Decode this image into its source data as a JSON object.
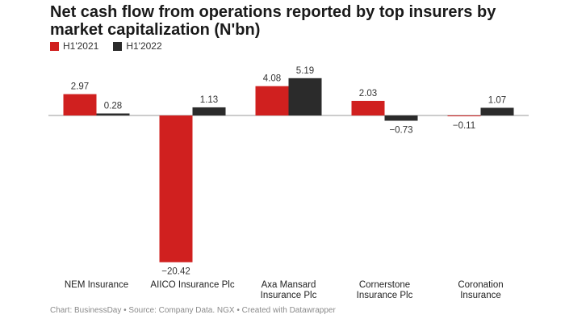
{
  "chart_data": {
    "type": "bar",
    "title": "Net cash flow from operations reported by top insurers by market capitalization (N'bn)",
    "categories": [
      [
        "NEM Insurance"
      ],
      [
        "AIICO Insurance Plc"
      ],
      [
        "Axa Mansard",
        "Insurance Plc"
      ],
      [
        "Cornerstone",
        "Insurance Plc"
      ],
      [
        "Coronation",
        "Insurance"
      ]
    ],
    "series": [
      {
        "name": "H1'2021",
        "color": "#d0201f",
        "values": [
          2.97,
          -20.42,
          4.08,
          2.03,
          -0.11
        ],
        "labels": [
          "2.97",
          "−20.42",
          "4.08",
          "2.03",
          "−0.11"
        ]
      },
      {
        "name": "H1'2022",
        "color": "#2b2b2b",
        "values": [
          0.28,
          1.13,
          5.19,
          -0.73,
          1.07
        ],
        "labels": [
          "0.28",
          "1.13",
          "5.19",
          "−0.73",
          "1.07"
        ]
      }
    ],
    "ylim": [
      -20.42,
      5.19
    ],
    "xlabel": "",
    "ylabel": "",
    "grid": false,
    "legend": "top-left"
  },
  "footer": "Chart: BusinessDay • Source: Company Data. NGX • Created with Datawrapper"
}
